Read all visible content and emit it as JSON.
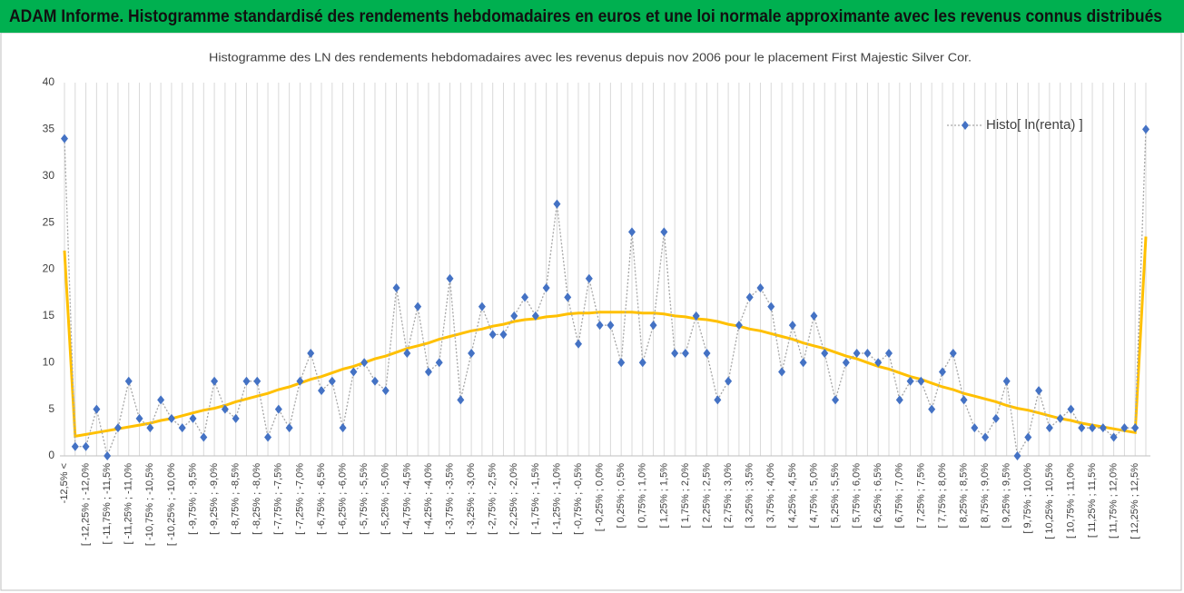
{
  "chart_data": {
    "type": "line",
    "title": "ADAM Informe. Histogramme standardisé des rendements hebdomadaires en euros et une loi normale approximante avec les revenus connus distribués",
    "subtitle": "Histogramme des LN des rendements hebdomadaires avec les revenus depuis nov 2006 pour le placement First Majestic Silver Cor.",
    "categories": [
      "-12,5% <",
      null,
      "[ -12,25% ; -12,0%",
      null,
      "[ -11,75% ; -11,5%",
      null,
      "[ -11,25% ; -11,0%",
      null,
      "[ -10,75% ; -10,5%",
      null,
      "[ -10,25% ; -10,0%",
      null,
      "[ -9,75% ; -9,5%",
      null,
      "[ -9,25% ; -9,0%",
      null,
      "[ -8,75% ; -8,5%",
      null,
      "[ -8,25% ; -8,0%",
      null,
      "[ -7,75% ; -7,5%",
      null,
      "[ -7,25% ; -7,0%",
      null,
      "[ -6,75% ; -6,5%",
      null,
      "[ -6,25% ; -6,0%",
      null,
      "[ -5,75% ; -5,5%",
      null,
      "[ -5,25% ; -5,0%",
      null,
      "[ -4,75% ; -4,5%",
      null,
      "[ -4,25% ; -4,0%",
      null,
      "[ -3,75% ; -3,5%",
      null,
      "[ -3,25% ; -3,0%",
      null,
      "[ -2,75% ; -2,5%",
      null,
      "[ -2,25% ; -2,0%",
      null,
      "[ -1,75% ; -1,5%",
      null,
      "[ -1,25% ; -1,0%",
      null,
      "[ -0,75% ; -0,5%",
      null,
      "[ -0,25% ; 0,0%",
      null,
      "[ 0,25% ; 0,5%",
      null,
      "[ 0,75% ; 1,0%",
      null,
      "[ 1,25% ; 1,5%",
      null,
      "[ 1,75% ; 2,0%",
      null,
      "[ 2,25% ; 2,5%",
      null,
      "[ 2,75% ; 3,0%",
      null,
      "[ 3,25% ; 3,5%",
      null,
      "[ 3,75% ; 4,0%",
      null,
      "[ 4,25% ; 4,5%",
      null,
      "[ 4,75% ; 5,0%",
      null,
      "[ 5,25% ; 5,5%",
      null,
      "[ 5,75% ; 6,0%",
      null,
      "[ 6,25% ; 6,5%",
      null,
      "[ 6,75% ; 7,0%",
      null,
      "[ 7,25% ; 7,5%",
      null,
      "[ 7,75% ; 8,0%",
      null,
      "[ 8,25% ; 8,5%",
      null,
      "[ 8,75% ; 9,0%",
      null,
      "[ 9,25% ; 9,5%",
      null,
      "[ 9,75% ; 10,0%",
      null,
      "[ 10,25% ; 10,5%",
      null,
      "[ 10,75% ; 11,0%",
      null,
      "[ 11,25% ; 11,5%",
      null,
      "[ 11,75% ; 12,0%",
      null,
      "[ 12,25% ; 12,5%",
      null
    ],
    "series": [
      {
        "name": "Histo[ ln(renta) ]",
        "color": "#4472c4",
        "values": [
          34,
          1,
          1,
          5,
          0,
          3,
          8,
          4,
          3,
          6,
          4,
          3,
          4,
          2,
          8,
          5,
          4,
          8,
          8,
          2,
          5,
          3,
          8,
          11,
          7,
          8,
          3,
          9,
          10,
          8,
          7,
          18,
          11,
          16,
          9,
          10,
          19,
          6,
          11,
          16,
          13,
          13,
          15,
          17,
          15,
          18,
          27,
          17,
          12,
          19,
          14,
          14,
          10,
          24,
          10,
          14,
          24,
          11,
          11,
          15,
          11,
          6,
          8,
          14,
          17,
          18,
          16,
          9,
          14,
          10,
          15,
          11,
          6,
          10,
          11,
          11,
          10,
          11,
          6,
          8,
          8,
          5,
          9,
          11,
          6,
          3,
          2,
          4,
          8,
          0,
          2,
          7,
          3,
          4,
          5,
          3,
          3,
          3,
          2,
          3,
          3,
          35
        ]
      },
      {
        "color": "#ffc000",
        "values": [
          22,
          2.1,
          2.3,
          2.5,
          2.7,
          2.9,
          3.1,
          3.3,
          3.5,
          3.8,
          4.0,
          4.3,
          4.6,
          4.9,
          5.1,
          5.4,
          5.8,
          6.1,
          6.4,
          6.7,
          7.1,
          7.4,
          7.8,
          8.2,
          8.5,
          8.9,
          9.3,
          9.6,
          10.0,
          10.4,
          10.7,
          11.1,
          11.5,
          11.8,
          12.1,
          12.5,
          12.8,
          13.1,
          13.4,
          13.6,
          13.9,
          14.1,
          14.4,
          14.6,
          14.7,
          14.9,
          15.0,
          15.2,
          15.3,
          15.3,
          15.4,
          15.4,
          15.4,
          15.4,
          15.3,
          15.3,
          15.2,
          15.0,
          14.9,
          14.7,
          14.6,
          14.4,
          14.1,
          13.9,
          13.6,
          13.4,
          13.1,
          12.8,
          12.5,
          12.1,
          11.8,
          11.5,
          11.1,
          10.7,
          10.4,
          10.0,
          9.6,
          9.3,
          8.9,
          8.5,
          8.2,
          7.8,
          7.4,
          7.1,
          6.7,
          6.4,
          6.1,
          5.8,
          5.4,
          5.1,
          4.9,
          4.6,
          4.3,
          4.0,
          3.8,
          3.5,
          3.3,
          3.1,
          2.9,
          2.7,
          2.5,
          23.5
        ]
      }
    ],
    "ylim": [
      0,
      40
    ],
    "yticks": [
      0,
      5,
      10,
      15,
      20,
      25,
      30,
      35,
      40
    ],
    "grid": true,
    "legend": "top-right"
  }
}
